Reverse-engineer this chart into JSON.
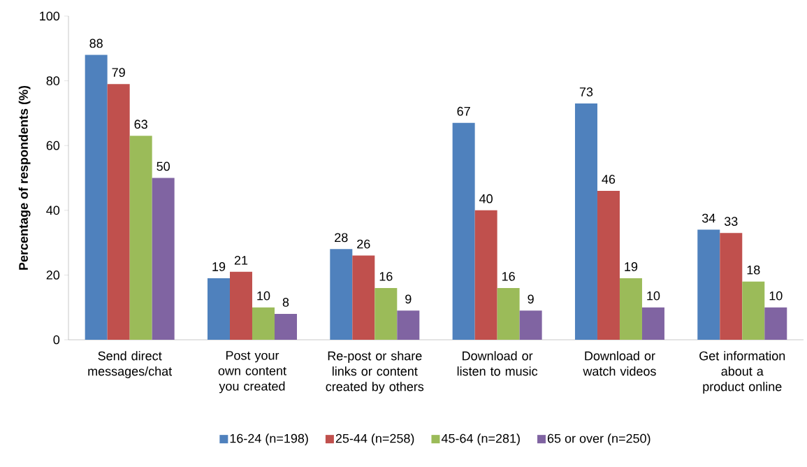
{
  "chart_data": {
    "type": "bar",
    "ylabel": "Percentage of respondents (%)",
    "categories": [
      "Send direct messages/chat",
      "Post your own content you created",
      "Re-post or share links or content created by others",
      "Download or listen to music",
      "Download or watch videos",
      "Get information about a product online"
    ],
    "series": [
      {
        "name": "16-24 (n=198)",
        "color": "#4f81bd",
        "values": [
          88,
          19,
          28,
          67,
          73,
          34
        ]
      },
      {
        "name": "25-44 (n=258)",
        "color": "#c0504d",
        "values": [
          79,
          21,
          26,
          40,
          46,
          33
        ]
      },
      {
        "name": "45-64 (n=281)",
        "color": "#9bbb59",
        "values": [
          63,
          10,
          16,
          16,
          19,
          18
        ]
      },
      {
        "name": "65 or over (n=250)",
        "color": "#8064a2",
        "values": [
          50,
          8,
          9,
          9,
          10,
          10
        ]
      }
    ],
    "ylim": [
      0,
      100
    ],
    "yticks": [
      0,
      20,
      40,
      60,
      80,
      100
    ],
    "data_labels": true,
    "legend": "bottom",
    "grid": false
  }
}
